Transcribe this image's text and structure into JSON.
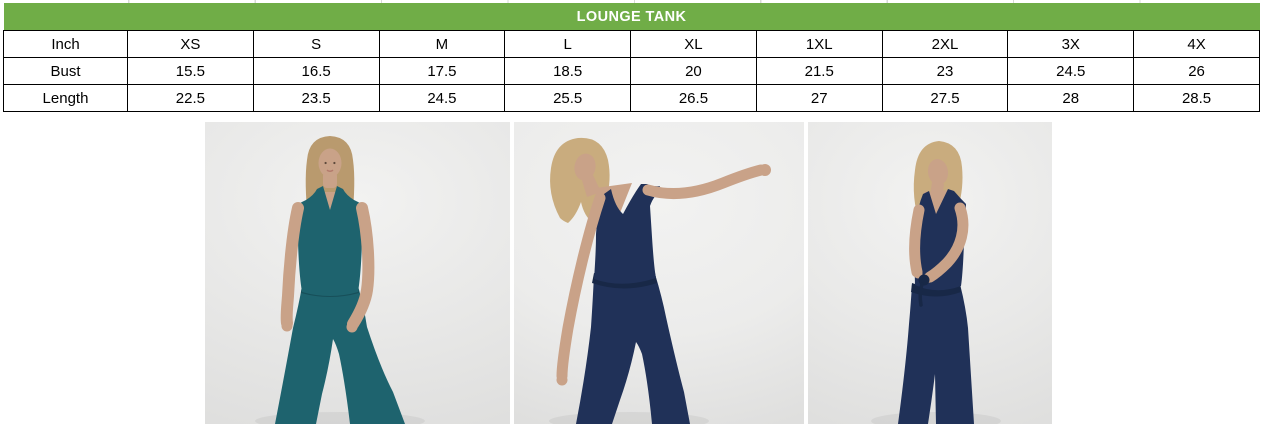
{
  "page": {
    "background": "#ffffff"
  },
  "size_chart": {
    "title": "LOUNGE TANK",
    "title_bg": "#70AD47",
    "title_color": "#FFFFFF",
    "unit_header": "Inch",
    "size_headers": [
      "XS",
      "S",
      "M",
      "L",
      "XL",
      "1XL",
      "2XL",
      "3X",
      "4X"
    ],
    "rows": [
      {
        "label": "Bust",
        "values": [
          "15.5",
          "16.5",
          "17.5",
          "18.5",
          "20",
          "21.5",
          "23",
          "24.5",
          "26"
        ]
      },
      {
        "label": "Length",
        "values": [
          "22.5",
          "23.5",
          "24.5",
          "25.5",
          "26.5",
          "27",
          "27.5",
          "28",
          "28.5"
        ]
      }
    ],
    "border_color": "#000000",
    "cell_bg": "#FFFFFF"
  },
  "photos": [
    {
      "name": "lounge-tank-front-view",
      "alt": "Model facing forward wearing teal lounge tank and matching wide-leg pants",
      "colors": {
        "bg": "#e8e8e7",
        "skin": "#c9a288",
        "hair": "#b99a6e",
        "outfit": "#1e636e",
        "outfit_dark": "#174f59"
      }
    },
    {
      "name": "lounge-tank-arm-extended",
      "alt": "Model with one arm outstretched wearing navy lounge tank and pants",
      "colors": {
        "bg": "#ececeb",
        "skin": "#c9a288",
        "hair": "#c9ac7e",
        "outfit": "#203158",
        "outfit_dark": "#182847"
      }
    },
    {
      "name": "lounge-tank-side-view",
      "alt": "Model in side profile adjusting waist tie of navy lounge tank set",
      "colors": {
        "bg": "#e9e9e8",
        "skin": "#c9a288",
        "hair": "#c9ac7e",
        "outfit": "#203158",
        "outfit_dark": "#182847"
      }
    }
  ]
}
